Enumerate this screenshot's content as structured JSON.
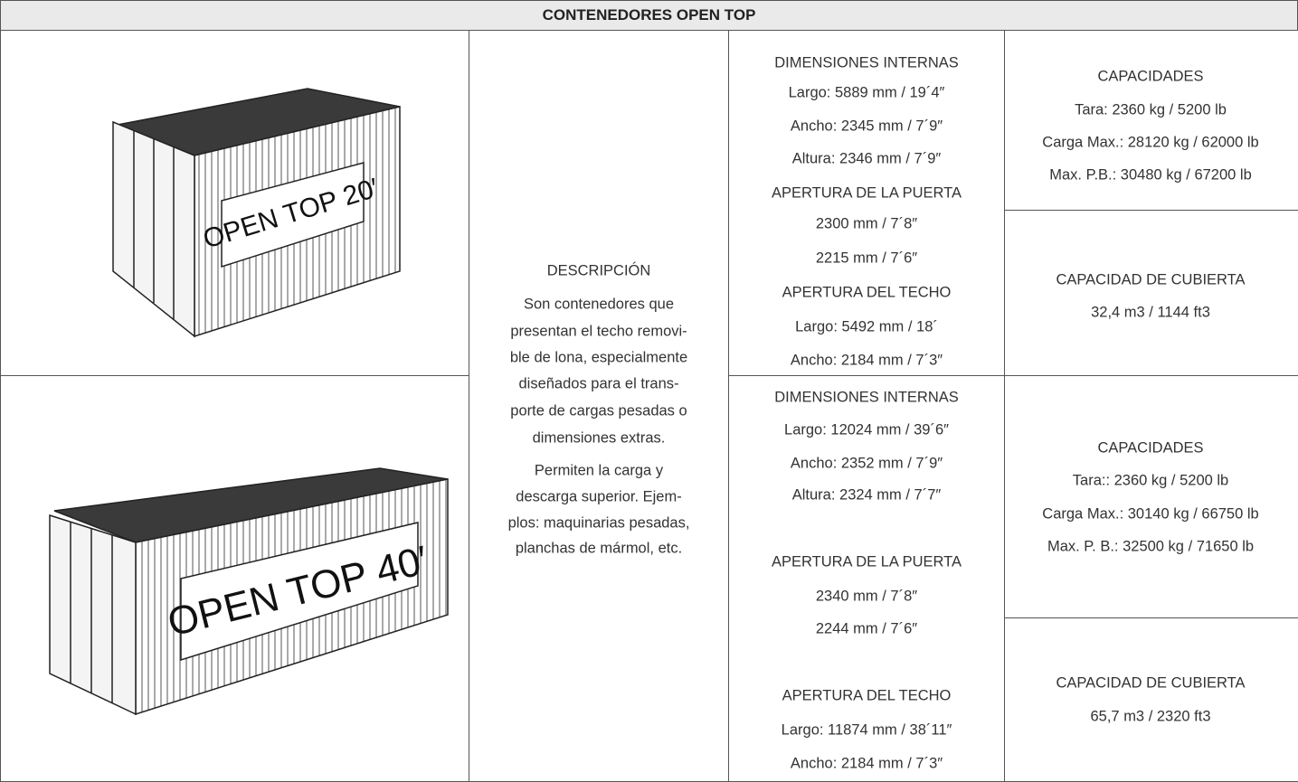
{
  "title": "CONTENEDORES OPEN TOP",
  "description": {
    "heading": "DESCRIPCIÓN",
    "lines": [
      "Son contenedores que",
      "presentan el techo removi-",
      "ble de lona, especialmente",
      "diseñados para el trans-",
      "porte de cargas pesadas o",
      "dimensiones extras.",
      "Permiten la carga y",
      "descarga superior. Ejem-",
      "plos: maquinarias pesadas,",
      "planchas de mármol, etc."
    ]
  },
  "rows": [
    {
      "image_label": "OPEN TOP 20′",
      "dimensions": [
        "DIMENSIONES INTERNAS",
        "Largo: 5889 mm / 19´4″",
        "Ancho: 2345 mm / 7´9″",
        "Altura: 2346 mm / 7´9″",
        "APERTURA DE LA PUERTA",
        "2300 mm / 7´8″",
        "2215 mm / 7´6″",
        "APERTURA DEL TECHO",
        "Largo: 5492 mm / 18´",
        "Ancho: 2184 mm / 7´3″"
      ],
      "capacities": [
        "CAPACIDADES",
        "Tara: 2360 kg / 5200 lb",
        "Carga Max.: 28120 kg / 62000 lb",
        "Max. P.B.: 30480 kg / 67200 lb"
      ],
      "deck": [
        "CAPACIDAD DE CUBIERTA",
        "32,4 m3 / 1144 ft3"
      ]
    },
    {
      "image_label": "OPEN TOP 40′",
      "dimensions": [
        "DIMENSIONES INTERNAS",
        "Largo: 12024 mm / 39´6″",
        "Ancho: 2352 mm / 7´9″",
        "Altura: 2324 mm / 7´7″",
        "APERTURA DE LA PUERTA",
        "2340 mm / 7´8″",
        "2244 mm / 7´6″",
        "APERTURA DEL TECHO",
        "Largo: 11874 mm / 38´11″",
        "Ancho: 2184 mm / 7´3″"
      ],
      "capacities": [
        "CAPACIDADES",
        "Tara:: 2360 kg / 5200 lb",
        "Carga Max.: 30140 kg / 66750 lb",
        "Max. P. B.: 32500 kg / 71650 lb"
      ],
      "deck": [
        "CAPACIDAD DE CUBIERTA",
        "65,7 m3 / 2320 ft3"
      ]
    }
  ]
}
